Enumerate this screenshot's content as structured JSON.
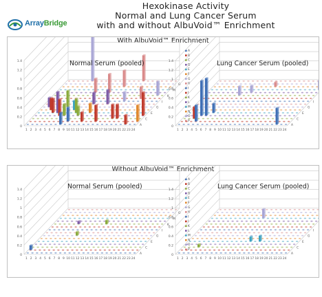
{
  "header": {
    "title_lines": [
      "Hexokinase Activity",
      "Normal and Lung Cancer Serum",
      "with and without AlbuVoid™ Enrichment"
    ],
    "logo_text_a": "Array",
    "logo_text_b": "Bridge"
  },
  "colors": {
    "blue": "#3f6fb5",
    "red": "#c0392b",
    "green": "#8aaa3b",
    "purple": "#7d5ba6",
    "teal": "#3ea3c1",
    "orange": "#e0892f",
    "lavender": "#a9a6d6",
    "pink": "#d98a8a",
    "grid": "#c8c8c8",
    "floor_dot": "#a9c2e2"
  },
  "chart_data": [
    {
      "type": "bar3d",
      "panel": "With AlbuVoid™ Enrichment",
      "title": "Normal Serum (pooled)",
      "x_ticks": [
        "1",
        "2",
        "3",
        "4",
        "5",
        "6",
        "7",
        "8",
        "9",
        "10",
        "11",
        "12",
        "13",
        "14",
        "15",
        "16",
        "17",
        "18",
        "19",
        "20",
        "21",
        "22",
        "23",
        "24"
      ],
      "rows": [
        "A",
        "B",
        "C",
        "D",
        "E",
        "F",
        "G",
        "H",
        "I",
        "J",
        "K",
        "L",
        "M",
        "N",
        "O",
        "P"
      ],
      "ylim": [
        0,
        1.4
      ],
      "y_ticks": [
        "0",
        "0.2",
        "0.4",
        "0.6",
        "0.8",
        "1",
        "1.2",
        "1.4"
      ],
      "points": [
        {
          "x": 8,
          "row": "A",
          "v": 0.25,
          "c": "blue"
        },
        {
          "x": 9,
          "row": "B",
          "v": 0.3,
          "c": "blue"
        },
        {
          "x": 12,
          "row": "B",
          "v": 0.2,
          "c": "red"
        },
        {
          "x": 15,
          "row": "B",
          "v": 0.35,
          "c": "red"
        },
        {
          "x": 18,
          "row": "C",
          "v": 0.3,
          "c": "red"
        },
        {
          "x": 19,
          "row": "C",
          "v": 0.3,
          "c": "red"
        },
        {
          "x": 6,
          "row": "D",
          "v": 0.35,
          "c": "red"
        },
        {
          "x": 7,
          "row": "D",
          "v": 0.25,
          "c": "green"
        },
        {
          "x": 10,
          "row": "D",
          "v": 0.2,
          "c": "green"
        },
        {
          "x": 4,
          "row": "E",
          "v": 0.3,
          "c": "red"
        },
        {
          "x": 5,
          "row": "E",
          "v": 0.45,
          "c": "purple"
        },
        {
          "x": 9,
          "row": "E",
          "v": 0.3,
          "c": "green"
        },
        {
          "x": 12,
          "row": "E",
          "v": 0.2,
          "c": "orange"
        },
        {
          "x": 3,
          "row": "F",
          "v": 0.25,
          "c": "red"
        },
        {
          "x": 8,
          "row": "F",
          "v": 0.2,
          "c": "teal"
        },
        {
          "x": 2,
          "row": "G",
          "v": 0.2,
          "c": "purple"
        },
        {
          "x": 6,
          "row": "G",
          "v": 0.35,
          "c": "green"
        },
        {
          "x": 11,
          "row": "H",
          "v": 0.25,
          "c": "purple"
        },
        {
          "x": 14,
          "row": "H",
          "v": 0.3,
          "c": "purple"
        },
        {
          "x": 17,
          "row": "I",
          "v": 0.2,
          "c": "lavender"
        },
        {
          "x": 20,
          "row": "J",
          "v": 0.25,
          "c": "pink"
        },
        {
          "x": 9,
          "row": "L",
          "v": 0.3,
          "c": "pink"
        },
        {
          "x": 12,
          "row": "L",
          "v": 0.4,
          "c": "pink"
        },
        {
          "x": 14,
          "row": "N",
          "v": 0.35,
          "c": "pink"
        },
        {
          "x": 6,
          "row": "P",
          "v": 1.1,
          "c": "lavender"
        },
        {
          "x": 17,
          "row": "P",
          "v": 0.55,
          "c": "pink"
        },
        {
          "x": 23,
          "row": "K",
          "v": 0.3,
          "c": "lavender"
        },
        {
          "x": 24,
          "row": "D",
          "v": 0.5,
          "c": "red"
        },
        {
          "x": 24,
          "row": "B",
          "v": 0.35,
          "c": "orange"
        },
        {
          "x": 22,
          "row": "A",
          "v": 0.2,
          "c": "red"
        }
      ]
    },
    {
      "type": "bar3d",
      "panel": "With AlbuVoid™ Enrichment",
      "title": "Lung Cancer Serum (pooled)",
      "x_ticks": [
        "1",
        "2",
        "3",
        "4",
        "5",
        "6",
        "7",
        "8",
        "9",
        "10",
        "11",
        "12",
        "13",
        "14",
        "15",
        "16",
        "17",
        "18",
        "19",
        "20",
        "21",
        "22",
        "23",
        "24"
      ],
      "rows": [
        "A",
        "B",
        "C",
        "D",
        "E",
        "F",
        "G",
        "H",
        "I",
        "J",
        "K",
        "L",
        "M",
        "N",
        "O",
        "P"
      ],
      "ylim": [
        0,
        1.4
      ],
      "y_ticks": [
        "0",
        "0.2",
        "0.4",
        "0.6",
        "0.8",
        "1",
        "1.2",
        "1.4"
      ],
      "points": [
        {
          "x": 4,
          "row": "D",
          "v": 0.75,
          "c": "blue"
        },
        {
          "x": 5,
          "row": "D",
          "v": 0.8,
          "c": "blue"
        },
        {
          "x": 4,
          "row": "B",
          "v": 0.35,
          "c": "blue"
        },
        {
          "x": 3,
          "row": "C",
          "v": 0.25,
          "c": "red"
        },
        {
          "x": 6,
          "row": "E",
          "v": 0.2,
          "c": "blue"
        },
        {
          "x": 8,
          "row": "K",
          "v": 0.2,
          "c": "lavender"
        },
        {
          "x": 10,
          "row": "L",
          "v": 0.15,
          "c": "lavender"
        },
        {
          "x": 22,
          "row": "A",
          "v": 0.35,
          "c": "blue"
        },
        {
          "x": 24,
          "row": "M",
          "v": 0.2,
          "c": "lavender"
        },
        {
          "x": 14,
          "row": "N",
          "v": 0.1,
          "c": "pink"
        }
      ]
    },
    {
      "type": "bar3d",
      "panel": "Without AlbuVoid™ Enrichment",
      "title": "Normal Serum (pooled)",
      "x_ticks": [
        "1",
        "2",
        "3",
        "4",
        "5",
        "6",
        "7",
        "8",
        "9",
        "10",
        "11",
        "12",
        "13",
        "14",
        "15",
        "16",
        "17",
        "18",
        "19",
        "20",
        "21",
        "22",
        "23",
        "24"
      ],
      "rows": [
        "A",
        "B",
        "C",
        "D",
        "E",
        "F",
        "G",
        "H",
        "I",
        "J",
        "K",
        "L",
        "M",
        "N",
        "O",
        "P"
      ],
      "ylim": [
        0,
        1.4
      ],
      "y_ticks": [
        "0",
        "0.2",
        "0.4",
        "0.6",
        "0.8",
        "1",
        "1.2",
        "1.4"
      ],
      "points": [
        {
          "x": 1,
          "row": "B",
          "v": 0.1,
          "c": "blue"
        },
        {
          "x": 8,
          "row": "G",
          "v": 0.08,
          "c": "green"
        },
        {
          "x": 12,
          "row": "K",
          "v": 0.08,
          "c": "green"
        },
        {
          "x": 6,
          "row": "K",
          "v": 0.06,
          "c": "purple"
        }
      ]
    },
    {
      "type": "bar3d",
      "panel": "Without AlbuVoid™ Enrichment",
      "title": "Lung Cancer Serum (pooled)",
      "x_ticks": [
        "1",
        "2",
        "3",
        "4",
        "5",
        "6",
        "7",
        "8",
        "9",
        "10",
        "11",
        "12",
        "13",
        "14",
        "15",
        "16",
        "17",
        "18",
        "19",
        "20",
        "21",
        "22",
        "23",
        "24"
      ],
      "rows": [
        "A",
        "B",
        "C",
        "D",
        "E",
        "F",
        "G",
        "H",
        "I",
        "J",
        "K",
        "L",
        "M",
        "N",
        "O",
        "P"
      ],
      "ylim": [
        0,
        1.4
      ],
      "y_ticks": [
        "0",
        "0.2",
        "0.4",
        "0.6",
        "0.8",
        "1",
        "1.2",
        "1.4"
      ],
      "points": [
        {
          "x": 12,
          "row": "M",
          "v": 0.2,
          "c": "lavender"
        },
        {
          "x": 14,
          "row": "E",
          "v": 0.1,
          "c": "teal"
        },
        {
          "x": 16,
          "row": "E",
          "v": 0.12,
          "c": "teal"
        },
        {
          "x": 4,
          "row": "C",
          "v": 0.06,
          "c": "green"
        }
      ]
    }
  ]
}
